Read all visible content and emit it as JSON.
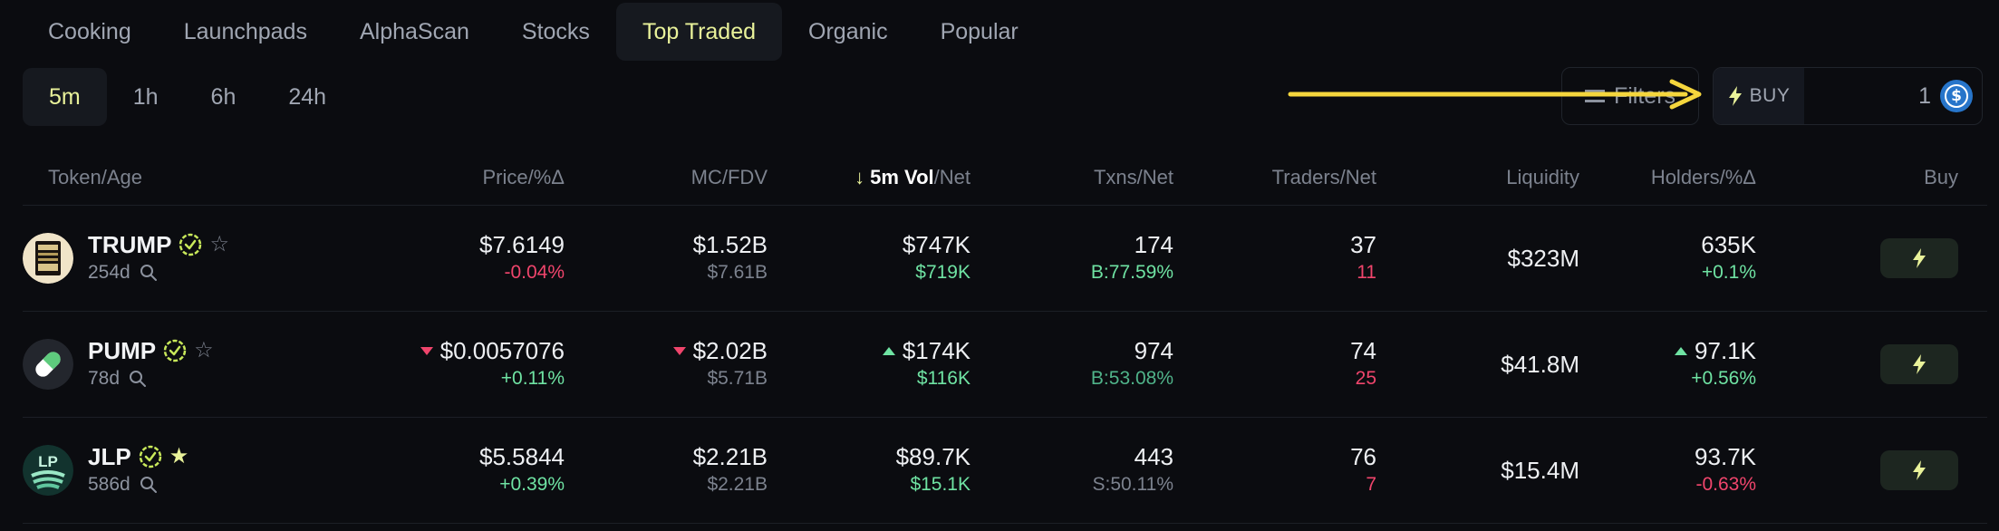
{
  "category_tabs": [
    {
      "label": "Cooking"
    },
    {
      "label": "Launchpads"
    },
    {
      "label": "AlphaScan"
    },
    {
      "label": "Stocks"
    },
    {
      "label": "Top Traded",
      "active": true
    },
    {
      "label": "Organic"
    },
    {
      "label": "Popular"
    }
  ],
  "time_tabs": [
    {
      "label": "5m",
      "active": true
    },
    {
      "label": "1h"
    },
    {
      "label": "6h"
    },
    {
      "label": "24h"
    }
  ],
  "filters": {
    "label": "Filters",
    "icon": "filter-icon"
  },
  "quick_buy": {
    "label": "BUY",
    "amount": "1",
    "currency_icon": "usdc-icon",
    "icon": "lightning-icon"
  },
  "colors": {
    "accent": "#e9f29a",
    "positive": "#6fe3a3",
    "negative": "#f0456c",
    "background": "#0b0c10",
    "annotation_arrow": "#f5d63d"
  },
  "table": {
    "headers": {
      "token": "Token/Age",
      "price": "Price/%Δ",
      "mc": "MC/FDV",
      "vol_sort_arrow": "↓",
      "vol_main": "5m Vol",
      "vol_suffix": "/Net",
      "txns": "Txns/Net",
      "traders": "Traders/Net",
      "liquidity": "Liquidity",
      "holders": "Holders/%Δ",
      "buy": "Buy"
    },
    "rows": [
      {
        "symbol": "TRUMP",
        "age": "254d",
        "verified": true,
        "favorite": false,
        "avatar_icon": "trump-token-icon",
        "price": "$7.6149",
        "price_change": "-0.04%",
        "price_trend": "none",
        "price_change_dir": "neg",
        "mc": "$1.52B",
        "fdv": "$7.61B",
        "mc_trend": "none",
        "vol": "$747K",
        "vol_net": "$719K",
        "vol_trend": "none",
        "txns": "174",
        "txns_net": "B:77.59%",
        "traders": "37",
        "traders_net": "11",
        "liquidity": "$323M",
        "holders": "635K",
        "holders_change": "+0.1%",
        "holders_change_dir": "pos",
        "holders_trend": "none"
      },
      {
        "symbol": "PUMP",
        "age": "78d",
        "verified": true,
        "favorite": false,
        "avatar_icon": "pump-pill-icon",
        "price": "$0.0057076",
        "price_change": "+0.11%",
        "price_trend": "down",
        "price_change_dir": "pos",
        "mc": "$2.02B",
        "fdv": "$5.71B",
        "mc_trend": "down",
        "vol": "$174K",
        "vol_net": "$116K",
        "vol_trend": "up",
        "txns": "974",
        "txns_net": "B:53.08%",
        "traders": "74",
        "traders_net": "25",
        "liquidity": "$41.8M",
        "holders": "97.1K",
        "holders_change": "+0.56%",
        "holders_change_dir": "pos",
        "holders_trend": "up"
      },
      {
        "symbol": "JLP",
        "age": "586d",
        "verified": true,
        "favorite": true,
        "avatar_icon": "jlp-token-icon",
        "price": "$5.5844",
        "price_change": "+0.39%",
        "price_trend": "none",
        "price_change_dir": "pos",
        "mc": "$2.21B",
        "fdv": "$2.21B",
        "mc_trend": "none",
        "vol": "$89.7K",
        "vol_net": "$15.1K",
        "vol_trend": "none",
        "txns": "443",
        "txns_net": "S:50.11%",
        "traders": "76",
        "traders_net": "7",
        "liquidity": "$15.4M",
        "holders": "93.7K",
        "holders_change": "-0.63%",
        "holders_change_dir": "neg",
        "holders_trend": "none"
      }
    ]
  }
}
